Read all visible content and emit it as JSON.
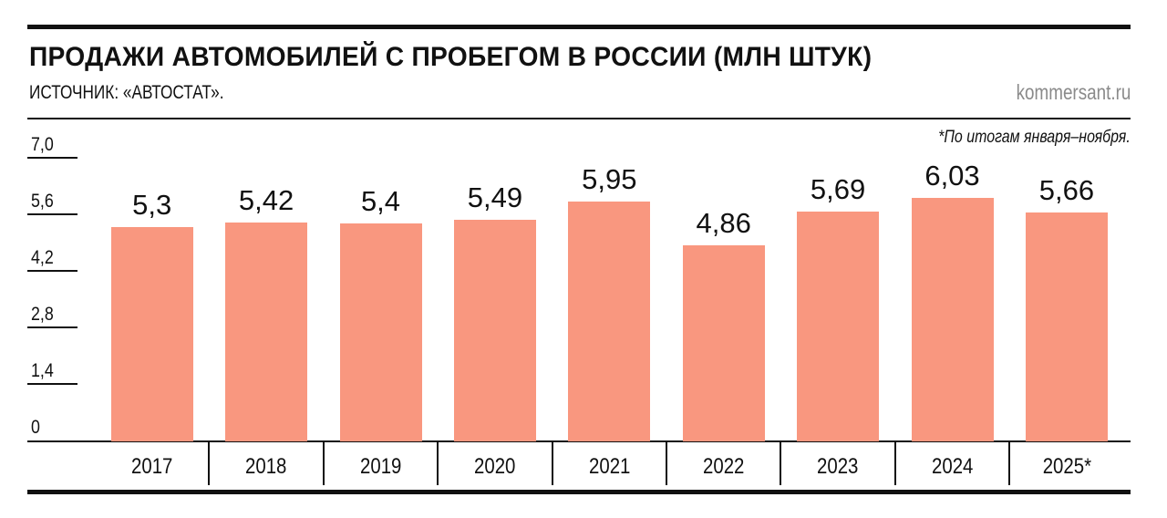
{
  "header": {
    "title": "ПРОДАЖИ АВТОМОБИЛЕЙ С ПРОБЕГОМ В РОССИИ (МЛН ШТУК)",
    "source": "ИСТОЧНИК: «АВТОСТАТ».",
    "site": "kommersant.ru",
    "footnote": "*По итогам января–ноября."
  },
  "colors": {
    "bar": "#F9977F",
    "text": "#111111",
    "site": "#8A8A8A"
  },
  "chart_data": {
    "type": "bar",
    "title": "ПРОДАЖИ АВТОМОБИЛЕЙ С ПРОБЕГОМ В РОССИИ (МЛН ШТУК)",
    "subtitle": "ИСТОЧНИК: «АВТОСТАТ».",
    "xlabel": "",
    "ylabel": "млн штук",
    "categories": [
      "2017",
      "2018",
      "2019",
      "2020",
      "2021",
      "2022",
      "2023",
      "2024",
      "2025*"
    ],
    "values": [
      5.3,
      5.42,
      5.4,
      5.49,
      5.95,
      4.86,
      5.69,
      6.03,
      5.66
    ],
    "value_labels": [
      "5,3",
      "5,42",
      "5,4",
      "5,49",
      "5,95",
      "4,86",
      "5,69",
      "6,03",
      "5,66"
    ],
    "yticks": [
      "0",
      "1,4",
      "2,8",
      "4,2",
      "5,6",
      "7,0"
    ],
    "ylim": [
      0,
      7.0
    ],
    "grid": false,
    "legend": null,
    "annotations": [
      "*По итогам января–ноября."
    ]
  }
}
